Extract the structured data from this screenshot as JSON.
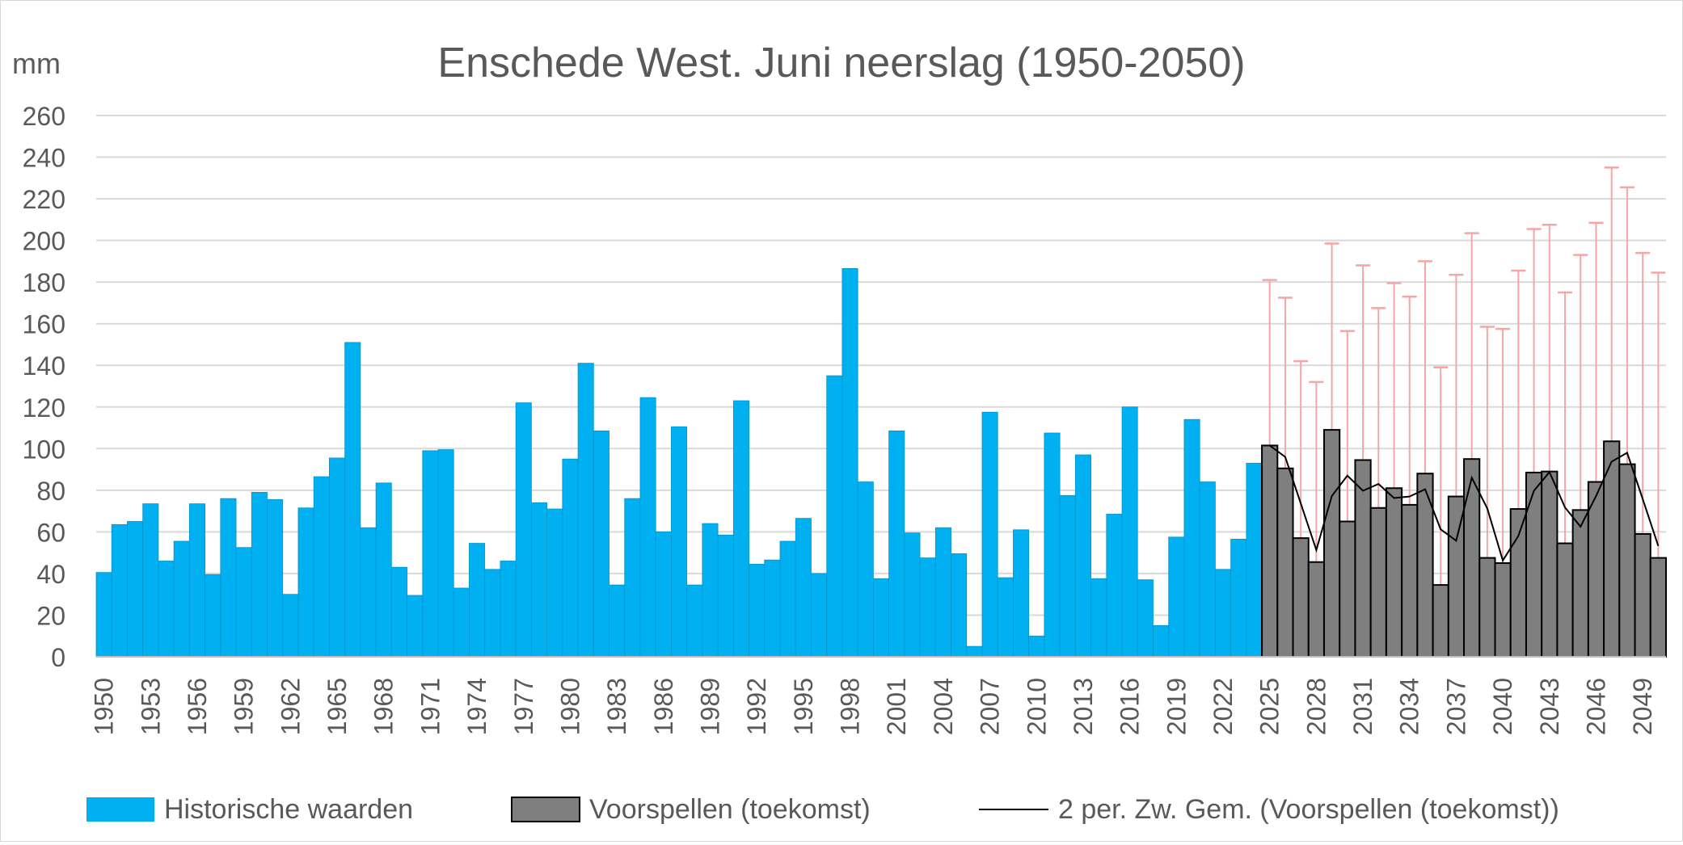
{
  "chart_data": {
    "type": "bar",
    "title": "Enschede West. Juni neerslag (1950-2050)",
    "ylabel": "mm",
    "xlabel": "",
    "ylim": [
      0,
      260
    ],
    "yticks": [
      0,
      20,
      40,
      60,
      80,
      100,
      120,
      140,
      160,
      180,
      200,
      220,
      240,
      260
    ],
    "grid": true,
    "legend_position": "bottom",
    "x_tick_labels": [
      "1950",
      "1953",
      "1956",
      "1959",
      "1962",
      "1965",
      "1968",
      "1971",
      "1974",
      "1977",
      "1980",
      "1983",
      "1986",
      "1989",
      "1992",
      "1995",
      "1998",
      "2001",
      "2004",
      "2007",
      "2010",
      "2013",
      "2016",
      "2019",
      "2022",
      "2025",
      "2028",
      "2031",
      "2034",
      "2037",
      "2040",
      "2043",
      "2046",
      "2049"
    ],
    "series": [
      {
        "name": "Historische waarden",
        "color": "#00B0F0",
        "x": [
          1950,
          1951,
          1952,
          1953,
          1954,
          1955,
          1956,
          1957,
          1958,
          1959,
          1960,
          1961,
          1962,
          1963,
          1964,
          1965,
          1966,
          1967,
          1968,
          1969,
          1970,
          1971,
          1972,
          1973,
          1974,
          1975,
          1976,
          1977,
          1978,
          1979,
          1980,
          1981,
          1982,
          1983,
          1984,
          1985,
          1986,
          1987,
          1988,
          1989,
          1990,
          1991,
          1992,
          1993,
          1994,
          1995,
          1996,
          1997,
          1998,
          1999,
          2000,
          2001,
          2002,
          2003,
          2004,
          2005,
          2006,
          2007,
          2008,
          2009,
          2010,
          2011,
          2012,
          2013,
          2014,
          2015,
          2016,
          2017,
          2018,
          2019,
          2020,
          2021,
          2022,
          2023,
          2024
        ],
        "values": [
          40.5,
          63.5,
          65,
          73.5,
          46,
          55.5,
          73.5,
          39.5,
          76,
          52.5,
          79,
          75.5,
          30,
          71.5,
          86.5,
          95.5,
          151,
          62,
          83.5,
          43,
          29.5,
          99,
          99.5,
          33,
          54.5,
          42,
          46,
          122,
          74,
          71,
          95,
          141,
          108.5,
          34.5,
          76,
          124.5,
          60,
          110.5,
          34.5,
          64,
          58.5,
          123,
          44.5,
          46.5,
          55.5,
          66.5,
          40,
          135,
          186.5,
          84,
          37.5,
          108.5,
          59.5,
          47.5,
          62,
          49.5,
          5,
          117.5,
          38,
          61,
          10,
          107.5,
          77.5,
          97,
          37.5,
          68.5,
          120,
          37,
          15,
          57.5,
          114,
          84,
          42,
          56.5,
          93
        ]
      },
      {
        "name": "Voorspellen (toekomst)",
        "color": "#7F7F7F",
        "x": [
          2025,
          2026,
          2027,
          2028,
          2029,
          2030,
          2031,
          2032,
          2033,
          2034,
          2035,
          2036,
          2037,
          2038,
          2039,
          2040,
          2041,
          2042,
          2043,
          2044,
          2045,
          2046,
          2047,
          2048,
          2049,
          2050
        ],
        "values": [
          101.5,
          90.5,
          57,
          45.5,
          109,
          65,
          94.5,
          71.5,
          81,
          73,
          88,
          34.5,
          77,
          95,
          47.5,
          45,
          71,
          88.5,
          89,
          54.5,
          70.5,
          84,
          103.5,
          92.5,
          59,
          47.5
        ],
        "error_upper": [
          181,
          172.5,
          142,
          132,
          198.5,
          156.5,
          188,
          167.5,
          179.5,
          173,
          190,
          139,
          183.5,
          203.5,
          158.5,
          157.5,
          185.5,
          205.5,
          207.5,
          175,
          193,
          208.5,
          235,
          225.5,
          194,
          184.5
        ]
      },
      {
        "name": "2 per. Zw. Gem. (Voorspellen (toekomst))",
        "type": "line",
        "color": "#000000",
        "x": [
          2025,
          2026,
          2027,
          2028,
          2029,
          2030,
          2031,
          2032,
          2033,
          2034,
          2035,
          2036,
          2037,
          2038,
          2039,
          2040,
          2041,
          2042,
          2043,
          2044,
          2045,
          2046,
          2047,
          2048,
          2049,
          2050
        ],
        "values": [
          101.5,
          96,
          73.75,
          51.25,
          77.25,
          87,
          79.75,
          83,
          76.25,
          77,
          80.5,
          61.25,
          55.75,
          86,
          71.25,
          46.25,
          58,
          79.75,
          88.75,
          71.75,
          62.5,
          77.25,
          93.75,
          98,
          75.75,
          53.25
        ]
      }
    ],
    "error_bar_color": "#F4A6A6"
  }
}
